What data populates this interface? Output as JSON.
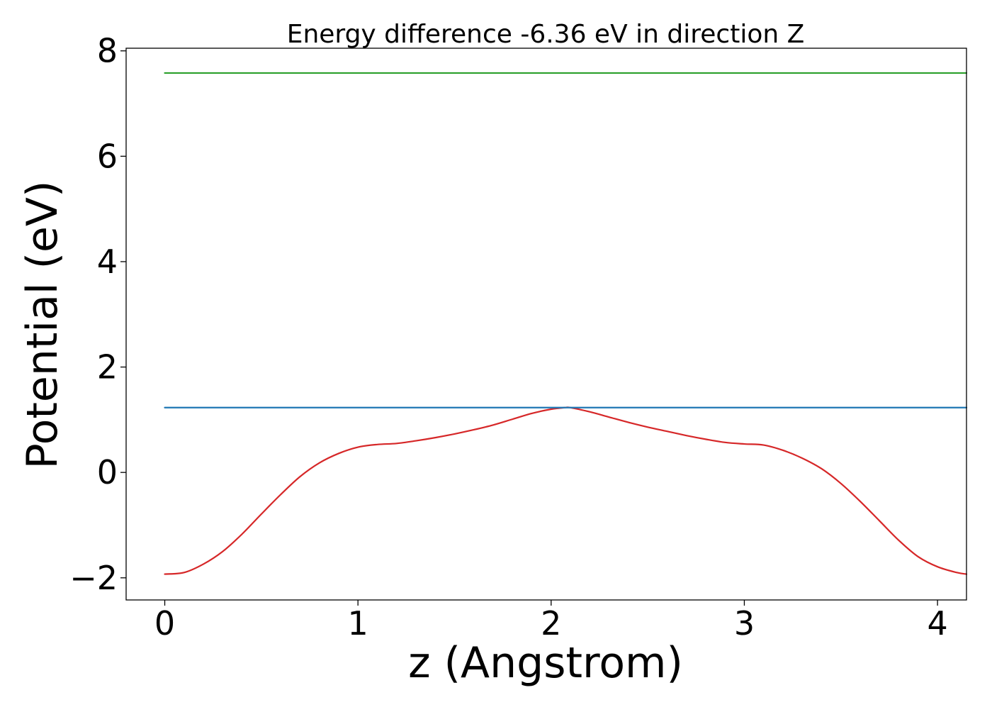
{
  "chart_data": {
    "type": "line",
    "title": "Energy difference -6.36 eV in direction Z",
    "xlabel": "z (Angstrom)",
    "ylabel": "Potential (eV)",
    "xlim": [
      -0.2,
      4.15
    ],
    "ylim": [
      -2.42,
      8.05
    ],
    "xticks": [
      0,
      1,
      2,
      3,
      4
    ],
    "xtick_labels": [
      "0",
      "1",
      "2",
      "3",
      "4"
    ],
    "yticks": [
      -2,
      0,
      2,
      4,
      6,
      8
    ],
    "ytick_labels": [
      "−2",
      "0",
      "2",
      "4",
      "6",
      "8"
    ],
    "grid": false,
    "series": [
      {
        "color": "#d62728",
        "style": "curve",
        "x": [
          0,
          0.1,
          0.2,
          0.3,
          0.4,
          0.5,
          0.6,
          0.7,
          0.8,
          0.9,
          1.0,
          1.1,
          1.2,
          1.3,
          1.4,
          1.5,
          1.6,
          1.7,
          1.8,
          1.9,
          2.0,
          2.07,
          2.1,
          2.2,
          2.3,
          2.4,
          2.5,
          2.6,
          2.7,
          2.8,
          2.9,
          3.0,
          3.1,
          3.2,
          3.3,
          3.4,
          3.5,
          3.6,
          3.7,
          3.8,
          3.9,
          4.0,
          4.1,
          4.15
        ],
        "y": [
          -1.93,
          -1.9,
          -1.74,
          -1.5,
          -1.17,
          -0.79,
          -0.42,
          -0.08,
          0.18,
          0.36,
          0.48,
          0.53,
          0.55,
          0.6,
          0.66,
          0.73,
          0.81,
          0.9,
          1.01,
          1.12,
          1.2,
          1.23,
          1.23,
          1.15,
          1.05,
          0.95,
          0.86,
          0.78,
          0.7,
          0.63,
          0.57,
          0.54,
          0.52,
          0.42,
          0.27,
          0.07,
          -0.21,
          -0.55,
          -0.92,
          -1.29,
          -1.6,
          -1.79,
          -1.9,
          -1.93
        ]
      },
      {
        "color": "#1f77b4",
        "style": "hline",
        "x": [
          0,
          4.15
        ],
        "y": [
          1.23,
          1.23
        ]
      },
      {
        "color": "#2ca02c",
        "style": "hline",
        "x": [
          0,
          4.15
        ],
        "y": [
          7.58,
          7.58
        ]
      }
    ]
  }
}
